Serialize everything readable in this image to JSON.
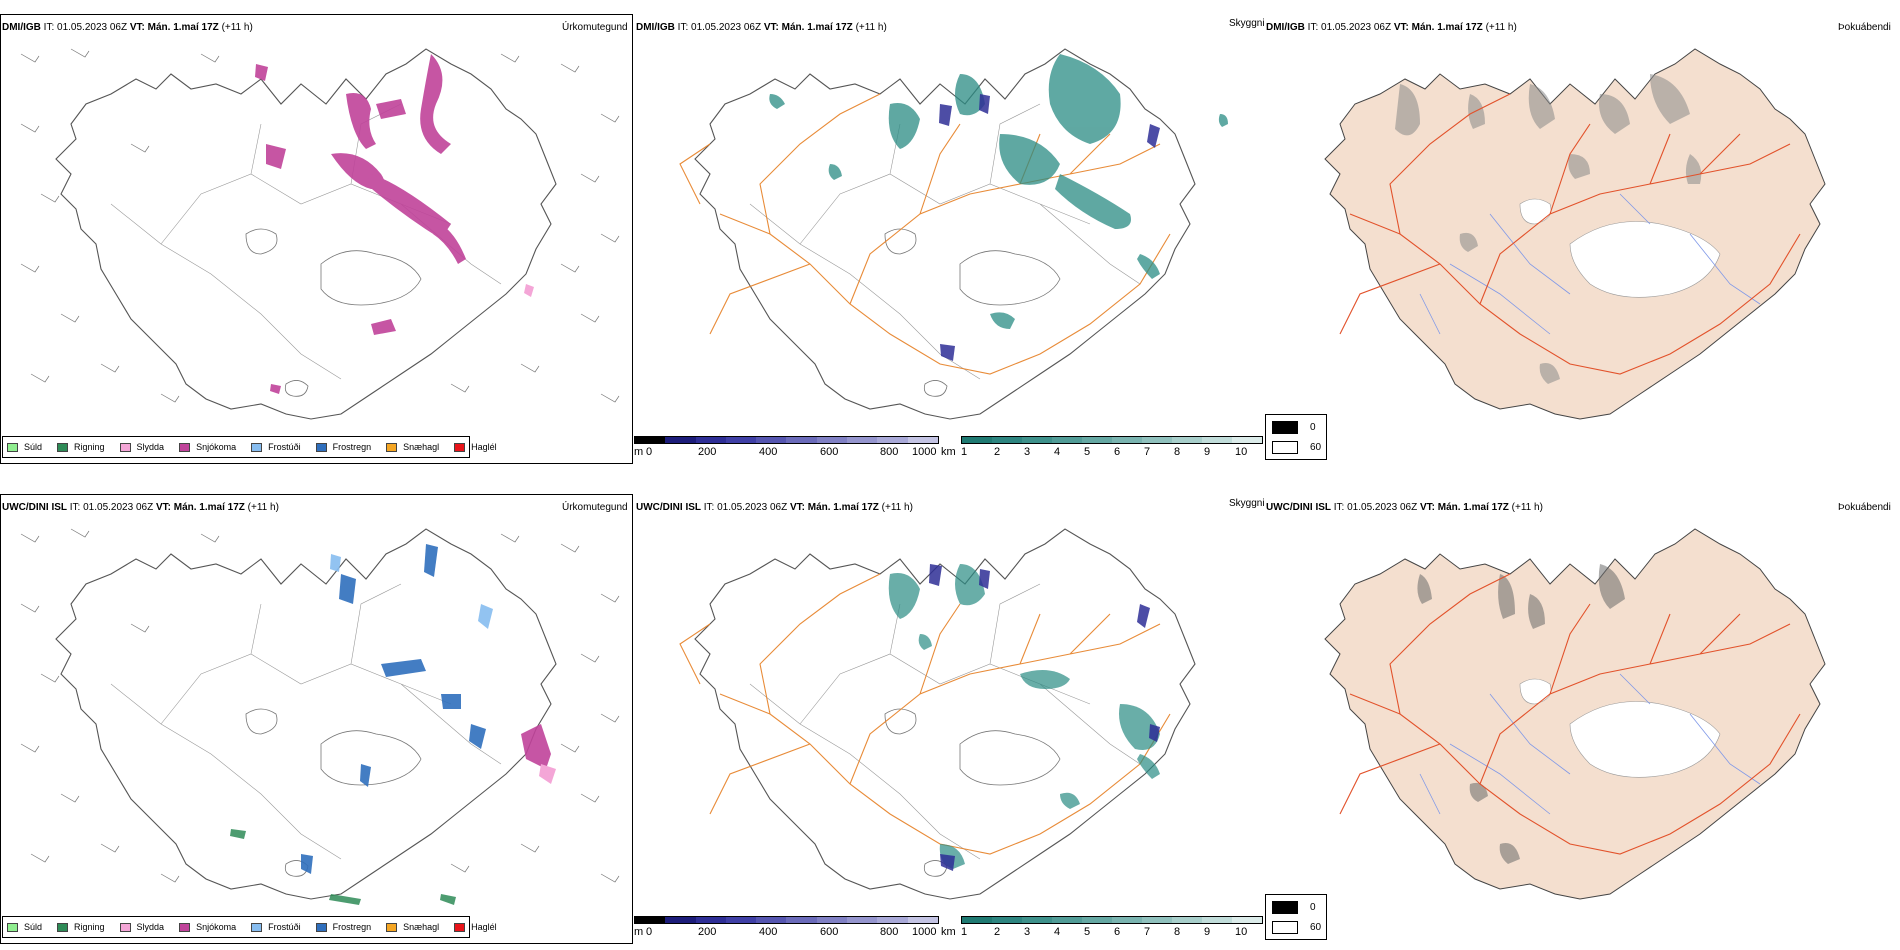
{
  "rows": [
    {
      "model": "DMI/IGB",
      "it_label": "IT:",
      "it_value": "01.05.2023 06Z",
      "vt_label": "VT:",
      "vt_value": "Mán. 1.maí 17Z",
      "lead": "(+11 h)"
    },
    {
      "model": "UWC/DINI ISL",
      "it_label": "IT:",
      "it_value": "01.05.2023 06Z",
      "vt_label": "VT:",
      "vt_value": "Mán. 1.maí 17Z",
      "lead": "(+11 h)"
    }
  ],
  "panel_titles": {
    "precip": "Úrkomutegund",
    "cloud": "Skyggni",
    "fog": "Þokuábendi"
  },
  "precip_legend": [
    {
      "label": "Súld",
      "color": "#90ee90"
    },
    {
      "label": "Rigning",
      "color": "#2e8b57"
    },
    {
      "label": "Slydda",
      "color": "#f4a6d7"
    },
    {
      "label": "Snjókoma",
      "color": "#c0439a"
    },
    {
      "label": "Frostúði",
      "color": "#87bdf0"
    },
    {
      "label": "Frostregn",
      "color": "#2f6fbd"
    },
    {
      "label": "Snæhagl",
      "color": "#f5a623"
    },
    {
      "label": "Haglél",
      "color": "#e8141a"
    }
  ],
  "ceiling_bar": {
    "unit": "m",
    "ticks": [
      "0",
      "200",
      "400",
      "600",
      "800",
      "1000"
    ],
    "colors": [
      "#000000",
      "#1c1c7a",
      "#2e2e96",
      "#3f3fa6",
      "#5555b0",
      "#6b6bba",
      "#8080c4",
      "#9595ce",
      "#a9a9d8",
      "#c4c4e4"
    ]
  },
  "visibility_bar": {
    "unit": "km",
    "ticks": [
      "1",
      "2",
      "3",
      "4",
      "5",
      "6",
      "7",
      "8",
      "9",
      "10"
    ],
    "colors": [
      "#1f7a72",
      "#2d8580",
      "#3e918b",
      "#519c97",
      "#65a8a3",
      "#7ab4b0",
      "#90c1bd",
      "#a8cfcb",
      "#c1ddda",
      "#dcecea"
    ]
  },
  "fog_legend": [
    {
      "label": "0",
      "color": "#000000"
    },
    {
      "label": "60",
      "color": "#ffffff"
    }
  ],
  "colors": {
    "snow": "#c0439a",
    "freezing_rain": "#2f6fbd",
    "freezing_drizzle": "#87bdf0",
    "sleet": "#f4a6d7",
    "rain": "#2e8b57",
    "teal": "#2a8c84",
    "road": "#e67e22",
    "fog_land": "#f4dfcf",
    "fog_road": "#e2522b",
    "river": "#7f98e8"
  }
}
